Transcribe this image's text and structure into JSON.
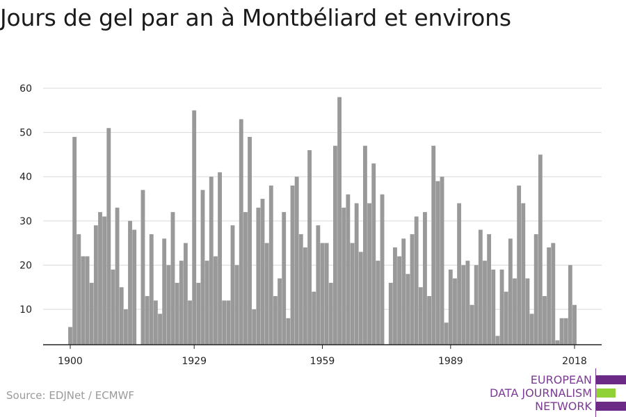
{
  "title": "Jours de gel par an à Montbéliard et environs",
  "source": "Source: EDJNet / ECMWF",
  "logo": {
    "lines": [
      "EUROPEAN",
      "DATA JOURNALISM",
      "NETWORK"
    ],
    "colors": {
      "text": "#7b3a93",
      "purple": "#6a2a86",
      "green": "#8fd136"
    }
  },
  "colors": {
    "bar": "#999999",
    "grid": "#d9d9d9",
    "axis": "#222222",
    "text": "#222222"
  },
  "chart_data": {
    "type": "bar",
    "title": "Jours de gel par an à Montbéliard et environs",
    "xlabel": "",
    "ylabel": "",
    "ylim": [
      2,
      60
    ],
    "xlim": [
      1900,
      2018
    ],
    "yticks": [
      10,
      20,
      30,
      40,
      50,
      60
    ],
    "xticks": [
      1900,
      1929,
      1959,
      1989,
      2018
    ],
    "grid": true,
    "legend": "none",
    "x": [
      1900,
      1901,
      1902,
      1903,
      1904,
      1905,
      1906,
      1907,
      1908,
      1909,
      1910,
      1911,
      1912,
      1913,
      1914,
      1915,
      1916,
      1917,
      1918,
      1919,
      1920,
      1921,
      1922,
      1923,
      1924,
      1925,
      1926,
      1927,
      1928,
      1929,
      1930,
      1931,
      1932,
      1933,
      1934,
      1935,
      1936,
      1937,
      1938,
      1939,
      1940,
      1941,
      1942,
      1943,
      1944,
      1945,
      1946,
      1947,
      1948,
      1949,
      1950,
      1951,
      1952,
      1953,
      1954,
      1955,
      1956,
      1957,
      1958,
      1959,
      1960,
      1961,
      1962,
      1963,
      1964,
      1965,
      1966,
      1967,
      1968,
      1969,
      1970,
      1971,
      1972,
      1973,
      1974,
      1975,
      1976,
      1977,
      1978,
      1979,
      1980,
      1981,
      1982,
      1983,
      1984,
      1985,
      1986,
      1987,
      1988,
      1989,
      1990,
      1991,
      1992,
      1993,
      1994,
      1995,
      1996,
      1997,
      1998,
      1999,
      2000,
      2001,
      2002,
      2003,
      2004,
      2005,
      2006,
      2007,
      2008,
      2009,
      2010,
      2011,
      2012,
      2013,
      2014,
      2015,
      2016,
      2017,
      2018
    ],
    "values": [
      6,
      49,
      27,
      22,
      22,
      16,
      29,
      32,
      31,
      51,
      19,
      33,
      15,
      10,
      30,
      28,
      2,
      37,
      13,
      27,
      12,
      9,
      26,
      20,
      32,
      16,
      21,
      25,
      12,
      55,
      16,
      37,
      21,
      40,
      22,
      41,
      12,
      12,
      29,
      20,
      53,
      32,
      49,
      10,
      33,
      35,
      25,
      38,
      13,
      17,
      32,
      8,
      38,
      40,
      27,
      24,
      46,
      14,
      29,
      25,
      25,
      16,
      47,
      58,
      33,
      36,
      25,
      34,
      23,
      47,
      34,
      43,
      21,
      36,
      2,
      16,
      24,
      22,
      26,
      18,
      27,
      31,
      15,
      32,
      13,
      47,
      39,
      40,
      7,
      19,
      17,
      34,
      20,
      21,
      11,
      20,
      28,
      21,
      27,
      19,
      4,
      19,
      14,
      26,
      17,
      38,
      34,
      17,
      9,
      27,
      45,
      13,
      24,
      25,
      3,
      8,
      8,
      20,
      11
    ]
  }
}
